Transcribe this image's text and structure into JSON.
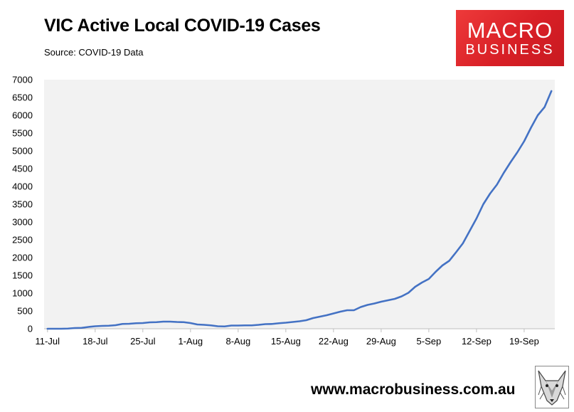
{
  "header": {
    "title": "VIC Active Local COVID-19 Cases",
    "source": "Source: COVID-19 Data"
  },
  "logo": {
    "line1": "MACRO",
    "line2": "BUSINESS",
    "color": "#d81f26"
  },
  "footer": {
    "url": "www.macrobusiness.com.au",
    "mascot_icon": "wolf-head-icon"
  },
  "chart_data": {
    "type": "line",
    "title": "VIC Active Local COVID-19 Cases",
    "xlabel": "",
    "ylabel": "",
    "ylim": [
      0,
      7000
    ],
    "yticks": [
      "0",
      "500",
      "1000",
      "1500",
      "2000",
      "2500",
      "3000",
      "3500",
      "4000",
      "4500",
      "5000",
      "5500",
      "6000",
      "6500",
      "7000"
    ],
    "xticks": [
      "11-Jul",
      "18-Jul",
      "25-Jul",
      "1-Aug",
      "8-Aug",
      "15-Aug",
      "22-Aug",
      "29-Aug",
      "5-Sep",
      "12-Sep",
      "19-Sep"
    ],
    "grid": false,
    "plot_background": "#f2f2f2",
    "line_color": "#4472c4",
    "series": [
      {
        "x": [
          "11-Jul",
          "12-Jul",
          "13-Jul",
          "14-Jul",
          "15-Jul",
          "16-Jul",
          "17-Jul",
          "18-Jul",
          "19-Jul",
          "20-Jul",
          "21-Jul",
          "22-Jul",
          "23-Jul",
          "24-Jul",
          "25-Jul",
          "26-Jul",
          "27-Jul",
          "28-Jul",
          "29-Jul",
          "30-Jul",
          "31-Jul",
          "1-Aug",
          "2-Aug",
          "3-Aug",
          "4-Aug",
          "5-Aug",
          "6-Aug",
          "7-Aug",
          "8-Aug",
          "9-Aug",
          "10-Aug",
          "11-Aug",
          "12-Aug",
          "13-Aug",
          "14-Aug",
          "15-Aug",
          "16-Aug",
          "17-Aug",
          "18-Aug",
          "19-Aug",
          "20-Aug",
          "21-Aug",
          "22-Aug",
          "23-Aug",
          "24-Aug",
          "25-Aug",
          "26-Aug",
          "27-Aug",
          "28-Aug",
          "29-Aug",
          "30-Aug",
          "31-Aug",
          "1-Sep",
          "2-Sep",
          "3-Sep",
          "4-Sep",
          "5-Sep",
          "6-Sep",
          "7-Sep",
          "8-Sep",
          "9-Sep",
          "10-Sep",
          "11-Sep",
          "12-Sep",
          "13-Sep",
          "14-Sep",
          "15-Sep",
          "16-Sep",
          "17-Sep",
          "18-Sep",
          "19-Sep",
          "20-Sep",
          "21-Sep",
          "22-Sep",
          "23-Sep"
        ],
        "values": [
          0,
          0,
          0,
          5,
          20,
          25,
          50,
          70,
          80,
          85,
          100,
          135,
          140,
          155,
          160,
          180,
          185,
          200,
          200,
          190,
          185,
          160,
          120,
          110,
          95,
          70,
          65,
          90,
          90,
          95,
          95,
          110,
          130,
          135,
          155,
          170,
          190,
          210,
          240,
          300,
          340,
          380,
          430,
          480,
          520,
          520,
          610,
          670,
          710,
          760,
          800,
          840,
          910,
          1010,
          1180,
          1300,
          1400,
          1600,
          1780,
          1910,
          2150,
          2400,
          2750,
          3100,
          3500,
          3800,
          4050,
          4380,
          4680,
          4960,
          5270,
          5650,
          6000,
          6230,
          6680
        ]
      }
    ]
  }
}
